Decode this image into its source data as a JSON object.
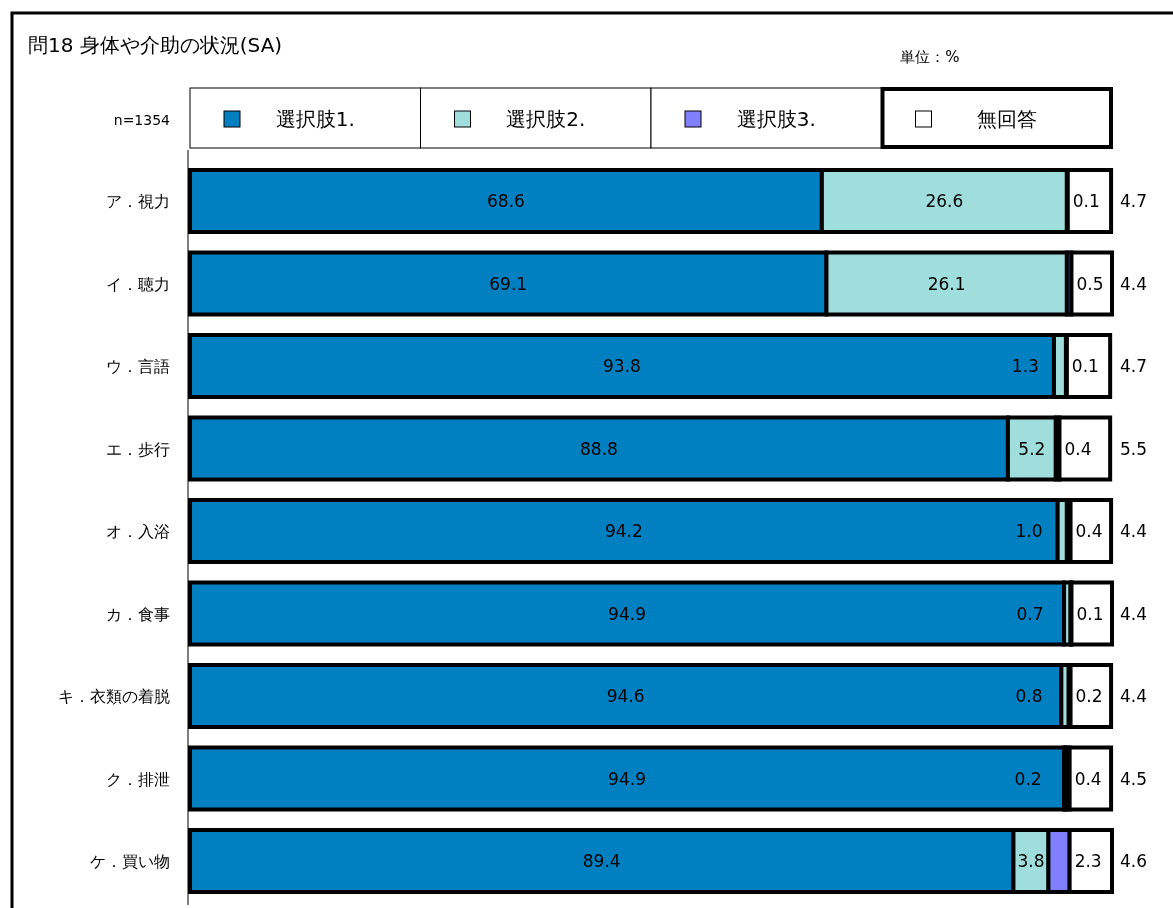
{
  "chart_data": {
    "type": "bar",
    "orientation": "horizontal",
    "stacked": true,
    "title": "問18 身体や介助の状況(SA)",
    "annotations": [
      "単位：%",
      "n=1354"
    ],
    "legend": "top",
    "categories": [
      "ア．視力",
      "イ．聴力",
      "ウ．言語",
      "エ．歩行",
      "オ．入浴",
      "カ．食事",
      "キ．衣類の着脱",
      "ク．排泄",
      "ケ．買い物"
    ],
    "series": [
      {
        "name": "選択肢1.",
        "color": "#0080c0",
        "values": [
          68.6,
          69.1,
          93.8,
          88.8,
          94.2,
          94.9,
          94.6,
          94.9,
          89.4
        ],
        "value_labels": [
          "68.6",
          "69.1",
          "93.8",
          "88.8",
          "94.2",
          "94.9",
          "94.6",
          "94.9",
          "89.4"
        ]
      },
      {
        "name": "選択肢2.",
        "color": "#a0dede",
        "values": [
          26.6,
          26.1,
          1.3,
          5.2,
          1.0,
          0.7,
          0.8,
          0.2,
          3.8
        ],
        "value_labels": [
          "26.6",
          "26.1",
          "1.3",
          "5.2",
          "1.0",
          "0.7",
          "0.8",
          "0.2",
          "3.8"
        ]
      },
      {
        "name": "選択肢3.",
        "color": "#8080ff",
        "values": [
          0.1,
          0.5,
          0.1,
          0.4,
          0.4,
          0.1,
          0.2,
          0.4,
          2.3
        ],
        "value_labels": [
          "0.1",
          "0.5",
          "0.1",
          "0.4",
          "0.4",
          "0.1",
          "0.2",
          "0.4",
          "2.3"
        ]
      },
      {
        "name": "無回答",
        "color": "#ffffff",
        "values": [
          4.7,
          4.4,
          4.7,
          5.5,
          4.4,
          4.4,
          4.4,
          4.5,
          4.6
        ],
        "value_labels": [
          "4.7",
          "4.4",
          "4.7",
          "5.5",
          "4.4",
          "4.4",
          "4.4",
          "4.5",
          "4.6"
        ]
      }
    ]
  }
}
